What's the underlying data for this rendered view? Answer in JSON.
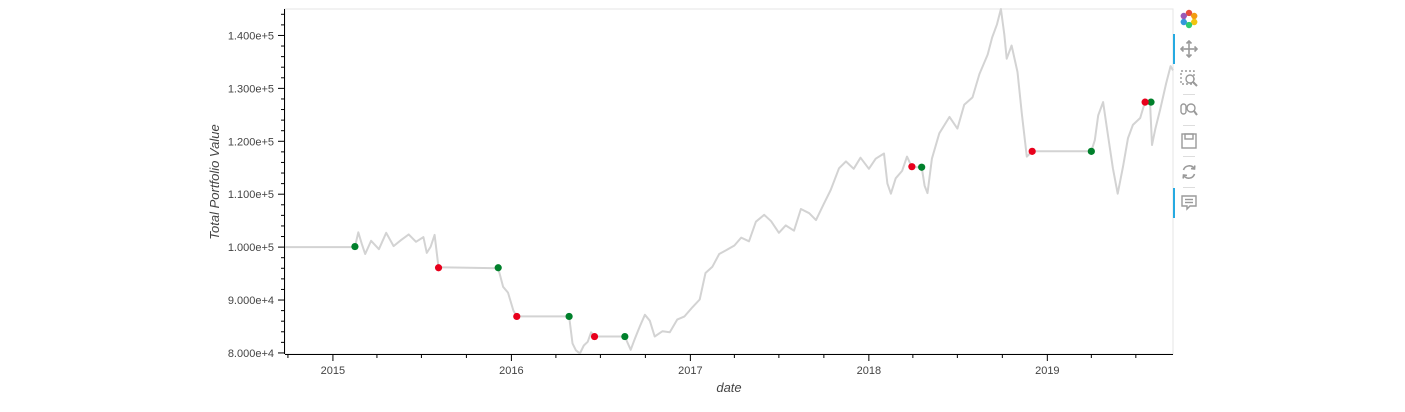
{
  "chart_data": {
    "type": "line",
    "xlabel": "date",
    "ylabel": "Total Portfolio Value",
    "xlim": [
      "2014-09-25",
      "2019-09-15"
    ],
    "ylim": [
      79800,
      145000
    ],
    "x_ticks": [
      "2015",
      "2016",
      "2017",
      "2018",
      "2019"
    ],
    "y_ticks": [
      {
        "value": 80000,
        "label": "8.000e+4"
      },
      {
        "value": 90000,
        "label": "9.000e+4"
      },
      {
        "value": 100000,
        "label": "1.000e+5"
      },
      {
        "value": 110000,
        "label": "1.100e+5"
      },
      {
        "value": 120000,
        "label": "1.200e+5"
      },
      {
        "value": 130000,
        "label": "1.300e+5"
      },
      {
        "value": 140000,
        "label": "1.400e+5"
      }
    ],
    "series": [
      {
        "type": "line",
        "color": "#d3d3d3",
        "points": [
          [
            "2014-09-25",
            100000
          ],
          [
            "2015-02-15",
            100000
          ],
          [
            "2015-02-22",
            102800
          ],
          [
            "2015-03-01",
            100600
          ],
          [
            "2015-03-08",
            98700
          ],
          [
            "2015-03-20",
            101200
          ],
          [
            "2015-04-05",
            99600
          ],
          [
            "2015-04-20",
            102700
          ],
          [
            "2015-05-05",
            100200
          ],
          [
            "2015-05-20",
            101300
          ],
          [
            "2015-06-05",
            102400
          ],
          [
            "2015-06-20",
            101000
          ],
          [
            "2015-07-05",
            101900
          ],
          [
            "2015-07-12",
            98900
          ],
          [
            "2015-07-20",
            100100
          ],
          [
            "2015-07-28",
            102300
          ],
          [
            "2015-08-05",
            96200
          ],
          [
            "2015-12-05",
            96000
          ],
          [
            "2015-12-15",
            92500
          ],
          [
            "2015-12-25",
            91400
          ],
          [
            "2016-01-05",
            88000
          ],
          [
            "2016-01-12",
            86900
          ],
          [
            "2016-04-28",
            86900
          ],
          [
            "2016-05-05",
            81800
          ],
          [
            "2016-05-12",
            80500
          ],
          [
            "2016-05-20",
            79900
          ],
          [
            "2016-05-28",
            81400
          ],
          [
            "2016-06-05",
            82100
          ],
          [
            "2016-06-12",
            83900
          ],
          [
            "2016-06-19",
            83100
          ],
          [
            "2016-08-20",
            83100
          ],
          [
            "2016-09-01",
            80600
          ],
          [
            "2016-09-10",
            82800
          ],
          [
            "2016-09-20",
            85100
          ],
          [
            "2016-09-30",
            87200
          ],
          [
            "2016-10-10",
            86100
          ],
          [
            "2016-10-20",
            83100
          ],
          [
            "2016-11-05",
            84100
          ],
          [
            "2016-11-20",
            83900
          ],
          [
            "2016-12-05",
            86300
          ],
          [
            "2016-12-20",
            86900
          ],
          [
            "2017-01-05",
            88600
          ],
          [
            "2017-01-20",
            90100
          ],
          [
            "2017-02-01",
            95100
          ],
          [
            "2017-02-15",
            96300
          ],
          [
            "2017-03-01",
            98700
          ],
          [
            "2017-03-15",
            99400
          ],
          [
            "2017-04-01",
            100300
          ],
          [
            "2017-04-15",
            101800
          ],
          [
            "2017-05-01",
            101100
          ],
          [
            "2017-05-15",
            104800
          ],
          [
            "2017-06-01",
            106100
          ],
          [
            "2017-06-15",
            104900
          ],
          [
            "2017-07-01",
            102700
          ],
          [
            "2017-07-15",
            104100
          ],
          [
            "2017-08-01",
            103100
          ],
          [
            "2017-08-15",
            107200
          ],
          [
            "2017-09-01",
            106400
          ],
          [
            "2017-09-15",
            105100
          ],
          [
            "2017-10-01",
            108200
          ],
          [
            "2017-10-15",
            110800
          ],
          [
            "2017-11-01",
            114900
          ],
          [
            "2017-11-15",
            116200
          ],
          [
            "2017-12-01",
            114800
          ],
          [
            "2017-12-15",
            116900
          ],
          [
            "2018-01-01",
            114800
          ],
          [
            "2018-01-15",
            116700
          ],
          [
            "2018-02-01",
            117700
          ],
          [
            "2018-02-08",
            112000
          ],
          [
            "2018-02-15",
            110100
          ],
          [
            "2018-02-25",
            113000
          ],
          [
            "2018-03-10",
            114400
          ],
          [
            "2018-03-20",
            117100
          ],
          [
            "2018-03-30",
            115100
          ],
          [
            "2018-04-19",
            115100
          ],
          [
            "2018-04-25",
            111600
          ],
          [
            "2018-05-01",
            110200
          ],
          [
            "2018-05-10",
            116700
          ],
          [
            "2018-05-25",
            121500
          ],
          [
            "2018-06-15",
            124600
          ],
          [
            "2018-07-01",
            122400
          ],
          [
            "2018-07-15",
            126900
          ],
          [
            "2018-08-01",
            128300
          ],
          [
            "2018-08-15",
            132700
          ],
          [
            "2018-09-01",
            136400
          ],
          [
            "2018-09-10",
            139600
          ],
          [
            "2018-09-20",
            142100
          ],
          [
            "2018-09-28",
            145000
          ],
          [
            "2018-10-05",
            140200
          ],
          [
            "2018-10-10",
            135600
          ],
          [
            "2018-10-20",
            138100
          ],
          [
            "2018-11-01",
            133100
          ],
          [
            "2018-11-10",
            125100
          ],
          [
            "2018-11-20",
            117100
          ],
          [
            "2018-12-01",
            118100
          ],
          [
            "2019-04-01",
            118100
          ],
          [
            "2019-04-08",
            120200
          ],
          [
            "2019-04-15",
            124900
          ],
          [
            "2019-04-25",
            127400
          ],
          [
            "2019-05-05",
            121100
          ],
          [
            "2019-05-15",
            114900
          ],
          [
            "2019-05-25",
            110100
          ],
          [
            "2019-06-05",
            115300
          ],
          [
            "2019-06-15",
            120600
          ],
          [
            "2019-06-25",
            123100
          ],
          [
            "2019-07-10",
            124400
          ],
          [
            "2019-07-20",
            127500
          ],
          [
            "2019-07-30",
            127500
          ],
          [
            "2019-08-03",
            119300
          ],
          [
            "2019-08-10",
            122400
          ],
          [
            "2019-08-20",
            126100
          ],
          [
            "2019-09-01",
            131000
          ],
          [
            "2019-09-10",
            134200
          ],
          [
            "2019-09-15",
            133400
          ]
        ]
      },
      {
        "type": "scatter",
        "color": "#00802b",
        "points": [
          [
            "2015-02-15",
            100100
          ],
          [
            "2015-12-05",
            96100
          ],
          [
            "2016-04-28",
            86900
          ],
          [
            "2016-08-20",
            83100
          ],
          [
            "2018-04-19",
            115100
          ],
          [
            "2019-04-01",
            118100
          ],
          [
            "2019-08-01",
            127400
          ]
        ]
      },
      {
        "type": "scatter",
        "color": "#e8001c",
        "points": [
          [
            "2015-08-05",
            96100
          ],
          [
            "2016-01-12",
            86900
          ],
          [
            "2016-06-19",
            83100
          ],
          [
            "2018-03-30",
            115200
          ],
          [
            "2018-12-01",
            118100
          ],
          [
            "2019-07-20",
            127400
          ]
        ]
      }
    ]
  },
  "toolbar": {
    "tools": [
      {
        "icon": "bokeh-logo-icon",
        "active": false
      },
      {
        "icon": "pan-icon",
        "active": true
      },
      {
        "icon": "box-zoom-icon",
        "active": false
      },
      {
        "icon": "wheel-zoom-icon",
        "active": false
      },
      {
        "icon": "save-icon",
        "active": false
      },
      {
        "icon": "reset-icon",
        "active": false
      },
      {
        "icon": "hover-icon",
        "active": true
      }
    ]
  }
}
